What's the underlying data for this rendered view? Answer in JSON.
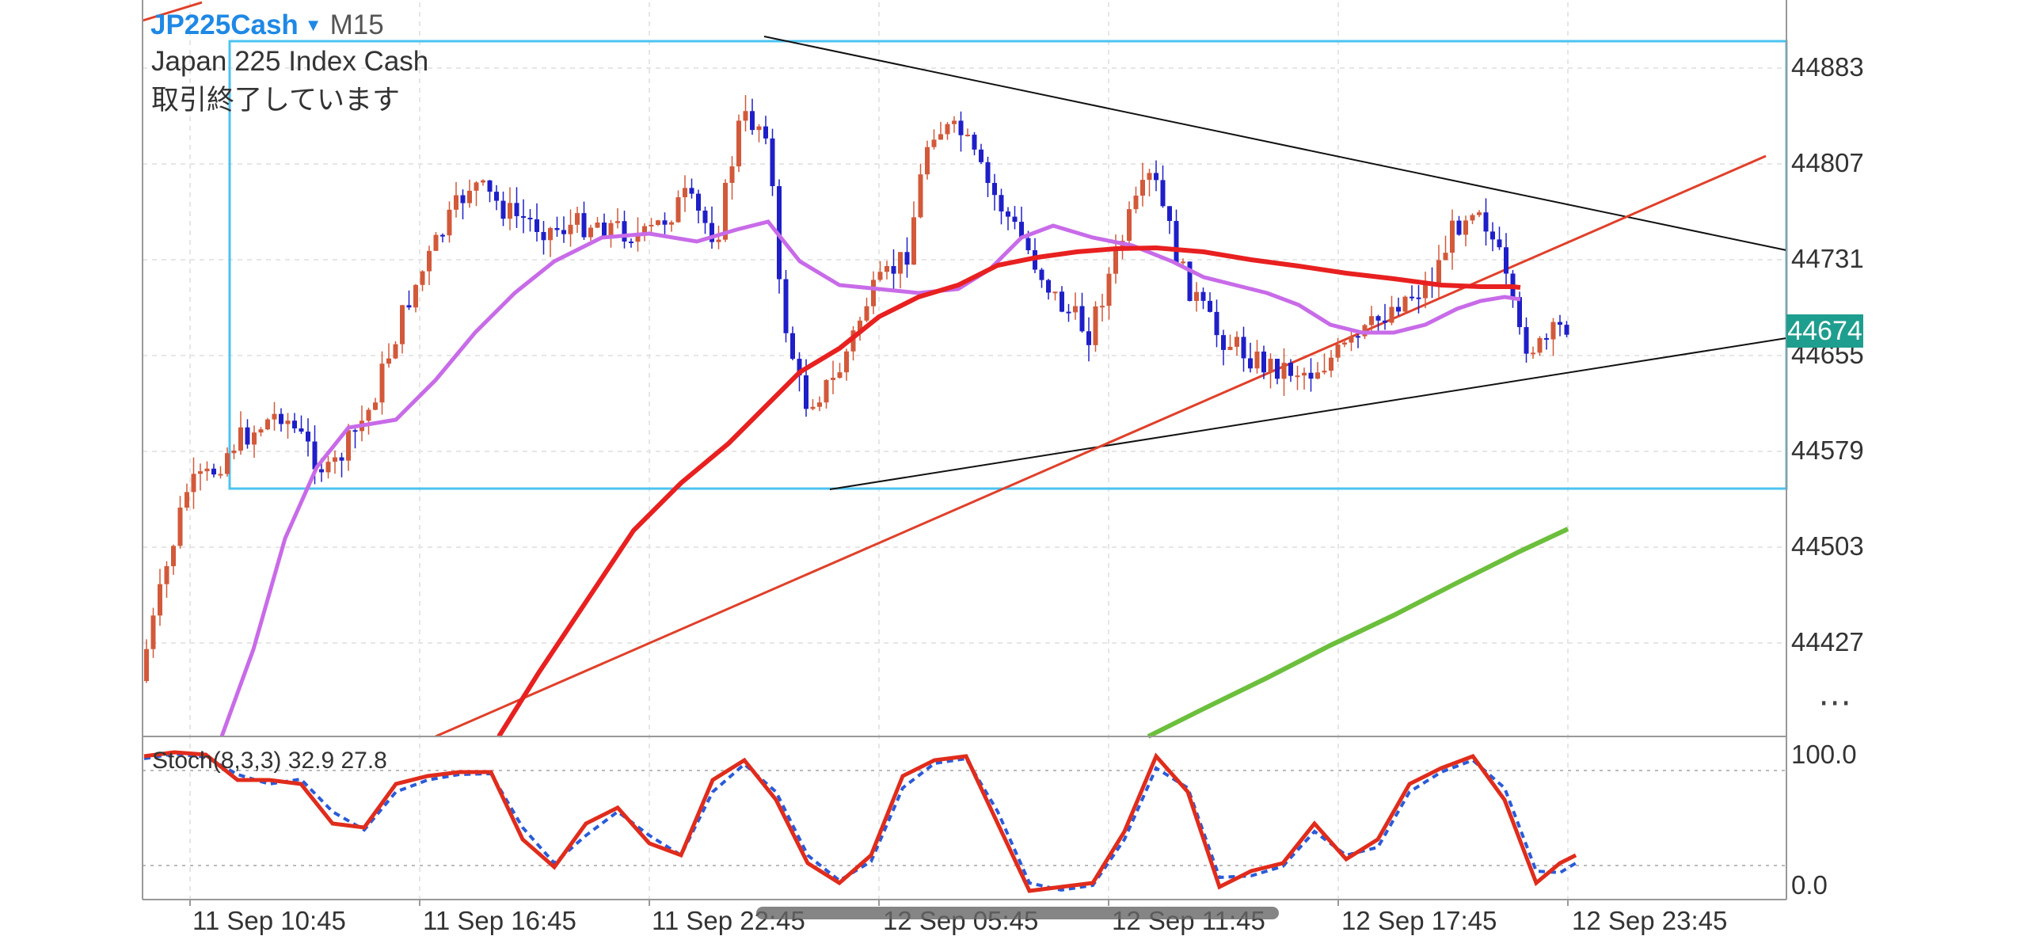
{
  "header": {
    "symbol": "JP225Cash",
    "timeframe": "M15",
    "description": "Japan 225 Index Cash",
    "market_status": "取引終了しています"
  },
  "price_axis": {
    "labels": [
      "44883",
      "44807",
      "44731",
      "44655",
      "44579",
      "44503",
      "44427"
    ],
    "current_price": "44674",
    "current_price_color": "#1e9e8e"
  },
  "time_axis": {
    "labels": [
      "11 Sep 10:45",
      "11 Sep 16:45",
      "11 Sep 22:45",
      "12 Sep 05:45",
      "12 Sep 11:45",
      "12 Sep 17:45",
      "12 Sep 23:45"
    ]
  },
  "oscillator": {
    "label": "Stoch(8,3,3) 32.9 27.8",
    "levels": [
      "100.0",
      "0.0"
    ]
  },
  "menu": {
    "more_icon": "⋯"
  },
  "colors": {
    "up_candle": "#d2593a",
    "down_candle": "#1f1fc8",
    "ma_fast": "#c86be8",
    "ma_slow": "#e82020",
    "ma_long": "#6cbf3c",
    "box": "#4cc3f0",
    "trendline_black": "#111111",
    "trendline_red": "#e0402a",
    "stoch_main": "#e02c1c",
    "stoch_signal": "#2a5bd8"
  },
  "chart_data": {
    "type": "candlestick",
    "y_range": [
      44370,
      44930
    ],
    "stoch_range": [
      0,
      100
    ]
  }
}
